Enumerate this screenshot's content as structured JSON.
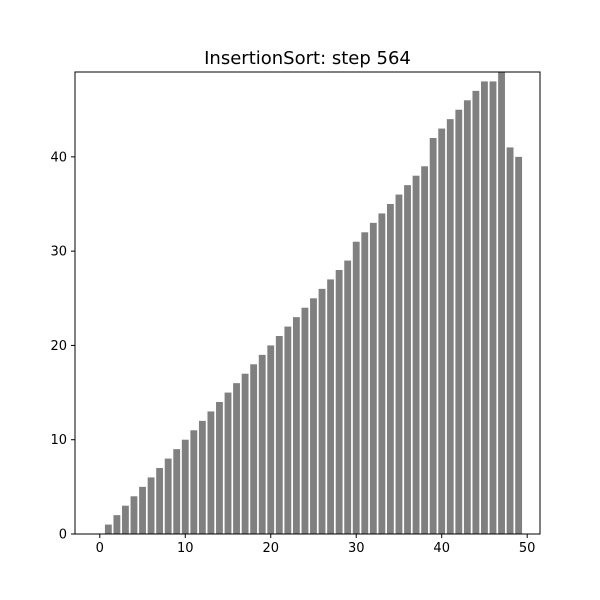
{
  "chart_data": {
    "type": "bar",
    "title": "InsertionSort: step 564",
    "xlabel": "",
    "ylabel": "",
    "bar_color": "#808080",
    "x": [
      0,
      1,
      2,
      3,
      4,
      5,
      6,
      7,
      8,
      9,
      10,
      11,
      12,
      13,
      14,
      15,
      16,
      17,
      18,
      19,
      20,
      21,
      22,
      23,
      24,
      25,
      26,
      27,
      28,
      29,
      30,
      31,
      32,
      33,
      34,
      35,
      36,
      37,
      38,
      39,
      40,
      41,
      42,
      43,
      44,
      45,
      46,
      47,
      48,
      49
    ],
    "values": [
      0,
      1,
      2,
      3,
      4,
      5,
      6,
      7,
      8,
      9,
      10,
      11,
      12,
      13,
      14,
      15,
      16,
      17,
      18,
      19,
      20,
      21,
      22,
      23,
      24,
      25,
      26,
      27,
      28,
      29,
      31,
      32,
      33,
      34,
      35,
      36,
      37,
      38,
      39,
      42,
      43,
      44,
      45,
      46,
      47,
      48,
      48,
      49,
      41,
      40
    ],
    "xlim": [
      -2.9,
      51.5
    ],
    "ylim": [
      0,
      49
    ],
    "xticks": [
      0,
      10,
      20,
      30,
      40,
      50
    ],
    "yticks": [
      0,
      10,
      20,
      30,
      40
    ],
    "grid": false
  }
}
